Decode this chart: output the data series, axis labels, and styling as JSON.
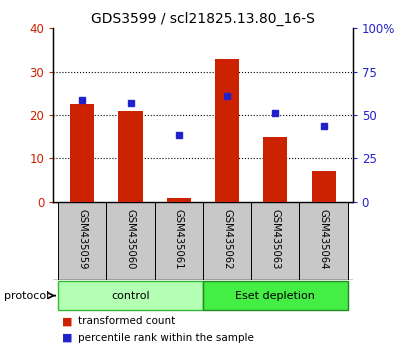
{
  "title": "GDS3599 / scl21825.13.80_16-S",
  "samples": [
    "GSM435059",
    "GSM435060",
    "GSM435061",
    "GSM435062",
    "GSM435063",
    "GSM435064"
  ],
  "red_values": [
    22.5,
    21.0,
    0.8,
    33.0,
    15.0,
    7.0
  ],
  "blue_values_pct": [
    58.75,
    56.75,
    38.75,
    61.25,
    51.25,
    43.75
  ],
  "ylim_left": [
    0,
    40
  ],
  "ylim_right": [
    0,
    100
  ],
  "yticks_left": [
    0,
    10,
    20,
    30,
    40
  ],
  "yticks_right": [
    0,
    25,
    50,
    75,
    100
  ],
  "ytick_labels_right": [
    "0",
    "25",
    "50",
    "75",
    "100%"
  ],
  "bar_color": "#cc2200",
  "dot_color": "#2222cc",
  "bar_width": 0.5,
  "groups": [
    {
      "label": "control",
      "color": "#b3ffb3",
      "edge_color": "#33bb33"
    },
    {
      "label": "Eset depletion",
      "color": "#44ee44",
      "edge_color": "#228822"
    }
  ],
  "protocol_label": "protocol",
  "legend_red": "transformed count",
  "legend_blue": "percentile rank within the sample",
  "sample_box_color": "#c8c8c8",
  "title_fontsize": 10,
  "tick_fontsize": 8.5,
  "label_fontsize": 8
}
